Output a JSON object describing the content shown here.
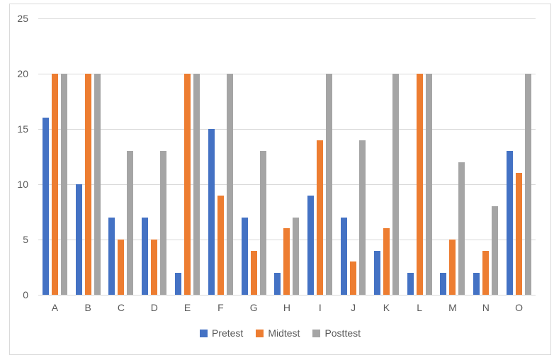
{
  "chart_data": {
    "type": "bar",
    "title": "",
    "categories": [
      "A",
      "B",
      "C",
      "D",
      "E",
      "F",
      "G",
      "H",
      "I",
      "J",
      "K",
      "L",
      "M",
      "N",
      "O"
    ],
    "series": [
      {
        "name": "Pretest",
        "color": "#4472C4",
        "values": [
          16,
          10,
          7,
          7,
          2,
          15,
          7,
          2,
          9,
          7,
          4,
          2,
          2,
          2,
          13
        ]
      },
      {
        "name": "Midtest",
        "color": "#ED7D31",
        "values": [
          20,
          20,
          5,
          5,
          20,
          9,
          4,
          6,
          14,
          3,
          6,
          20,
          5,
          4,
          11
        ]
      },
      {
        "name": "Posttest",
        "color": "#A5A5A5",
        "values": [
          20,
          20,
          13,
          13,
          20,
          20,
          13,
          7,
          20,
          14,
          20,
          20,
          12,
          8,
          20
        ]
      }
    ],
    "xlabel": "",
    "ylabel": "",
    "ylim": [
      0,
      25
    ],
    "yticks": [
      0,
      5,
      10,
      15,
      20,
      25
    ],
    "grid": true,
    "legend_position": "bottom"
  },
  "styles": {
    "text_color": "#595959",
    "gridline_color": "#D9D9D9",
    "frame_border_color": "#D9D9D9",
    "background_color": "#FFFFFF"
  }
}
